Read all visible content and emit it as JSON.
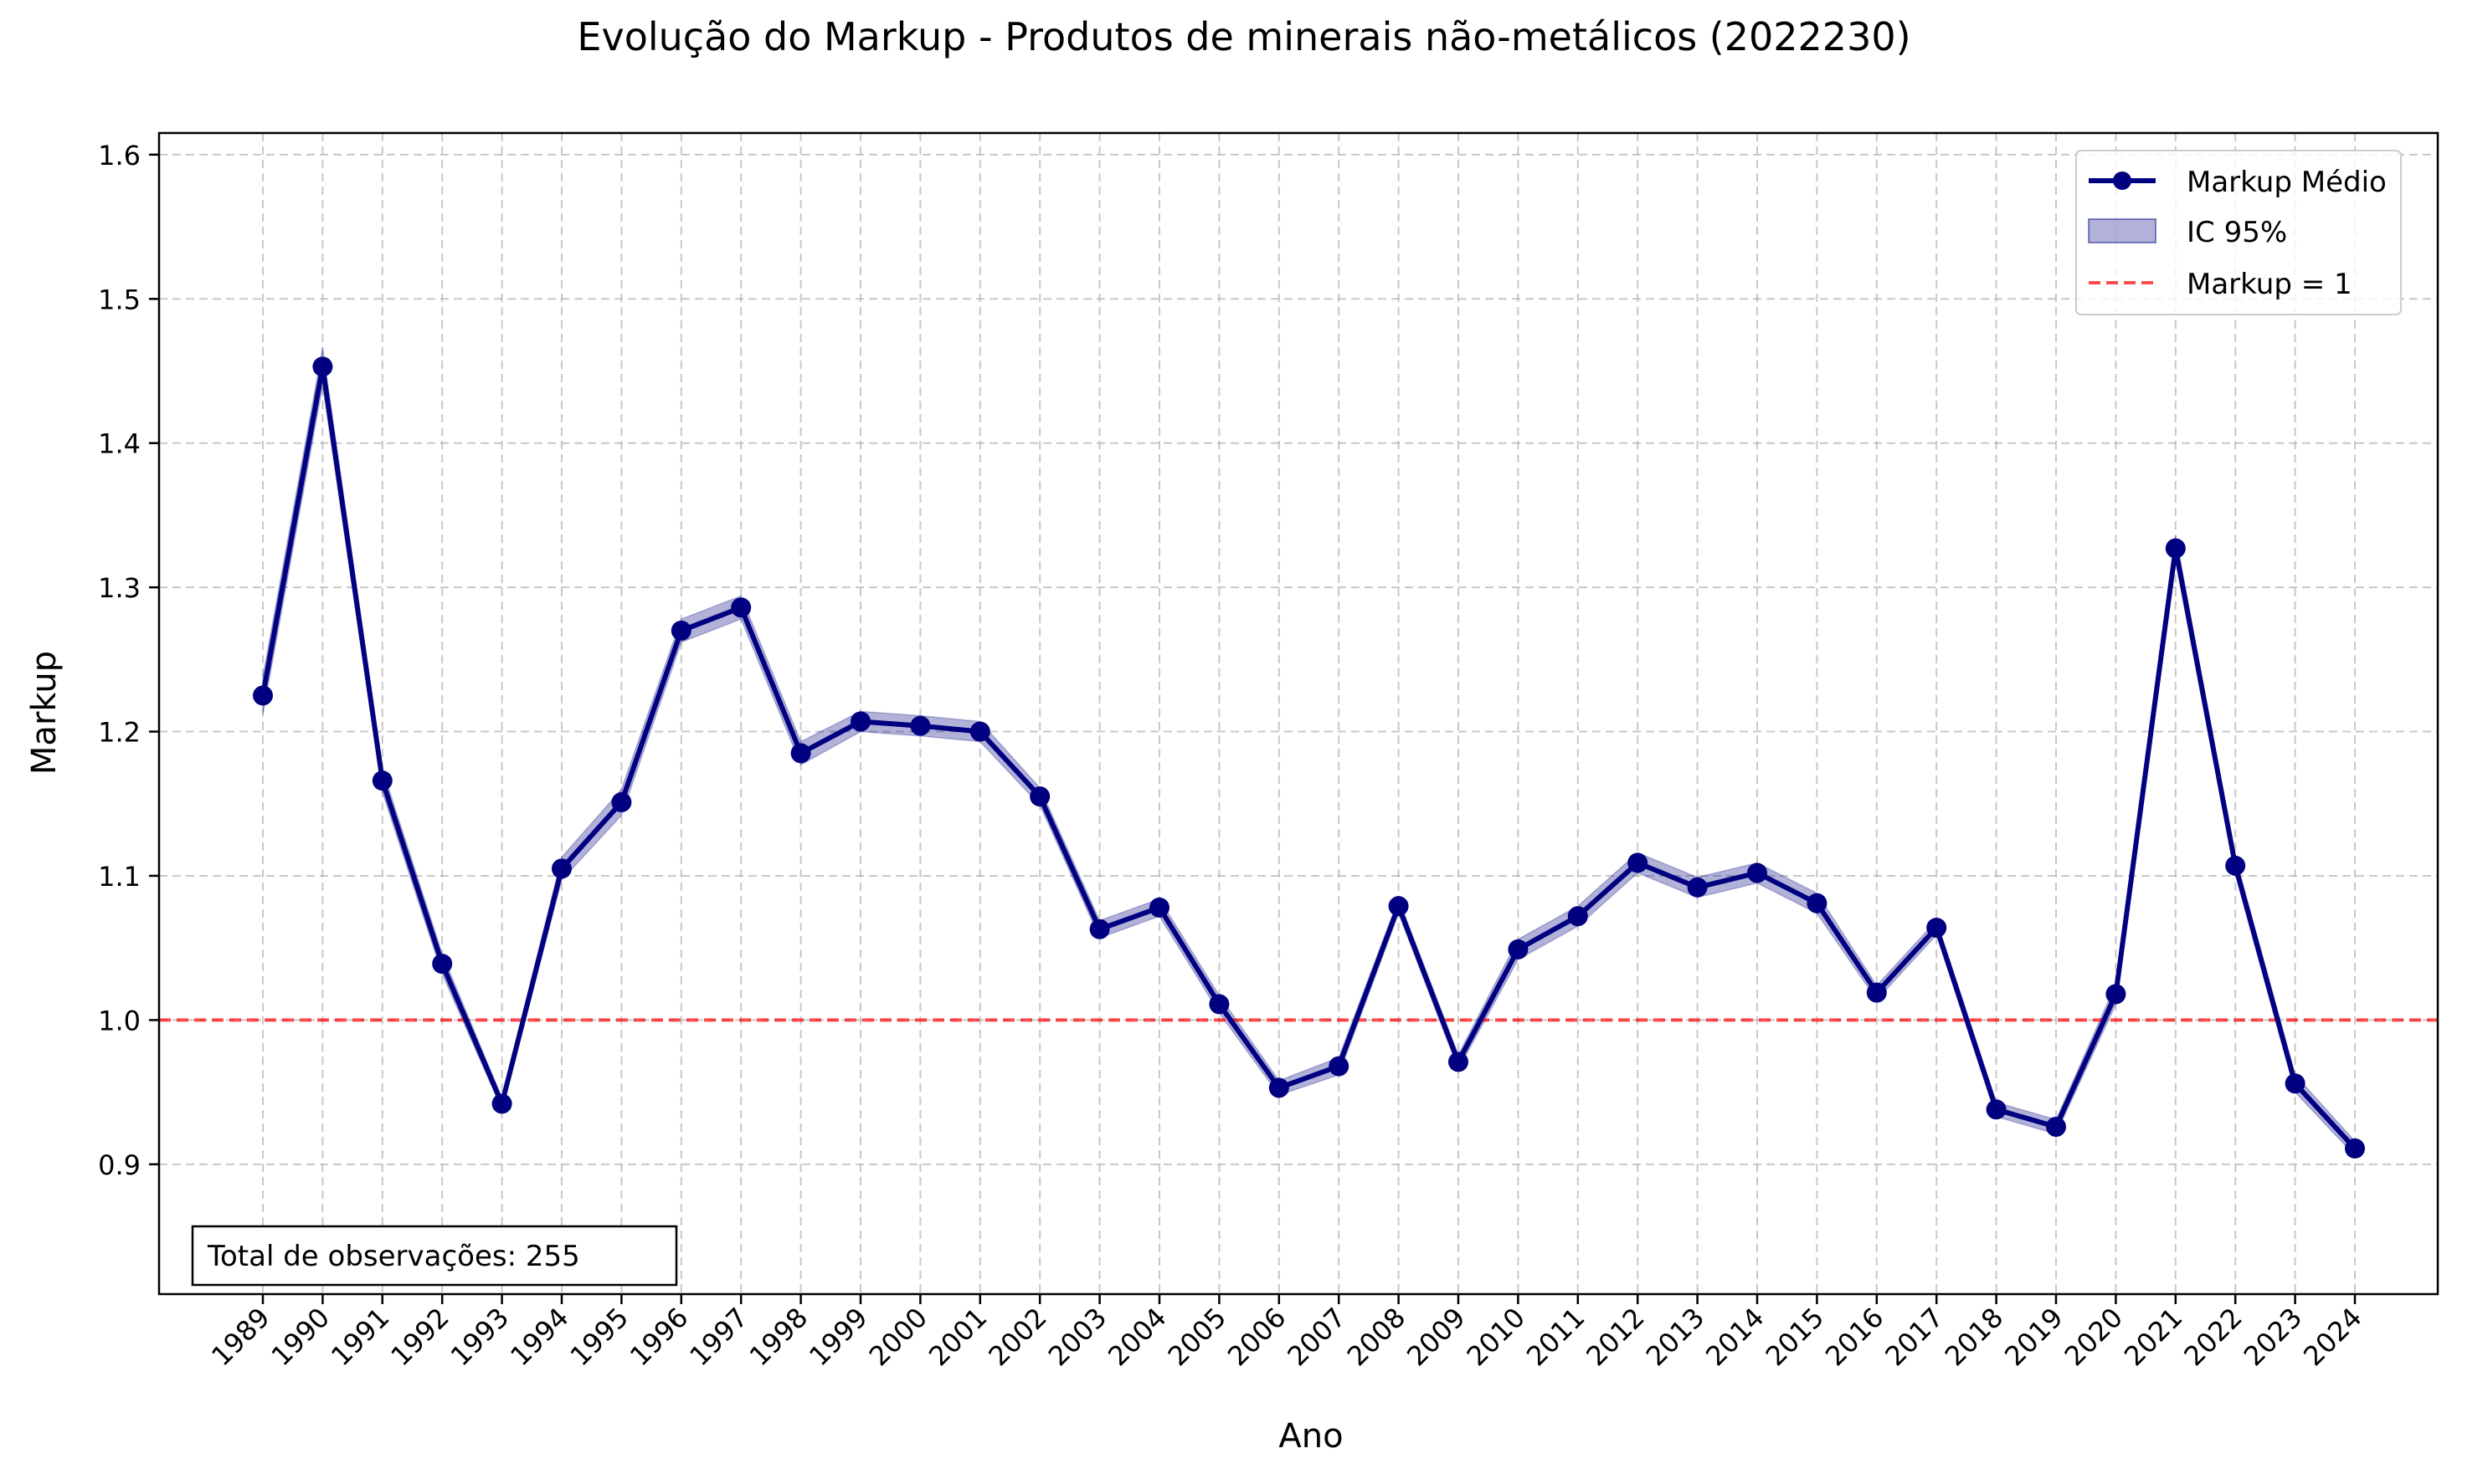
{
  "chart_data": {
    "type": "line",
    "title": "Evolução do Markup - Produtos de minerais não-metálicos (2022230)",
    "xlabel": "Ano",
    "ylabel": "Markup",
    "ylim": [
      0.81,
      1.615
    ],
    "yticks": [
      0.9,
      1.0,
      1.1,
      1.2,
      1.3,
      1.4,
      1.5,
      1.6
    ],
    "ytick_labels": [
      "0.9",
      "1.0",
      "1.1",
      "1.2",
      "1.3",
      "1.4",
      "1.5",
      "1.6"
    ],
    "x": [
      "1989",
      "1990",
      "1991",
      "1992",
      "1993",
      "1994",
      "1995",
      "1996",
      "1997",
      "1998",
      "1999",
      "2000",
      "2001",
      "2002",
      "2003",
      "2004",
      "2005",
      "2006",
      "2007",
      "2008",
      "2009",
      "2010",
      "2011",
      "2012",
      "2013",
      "2014",
      "2015",
      "2016",
      "2017",
      "2018",
      "2019",
      "2020",
      "2021",
      "2022",
      "2023",
      "2024"
    ],
    "series": [
      {
        "name": "Markup Médio",
        "color": "#000080",
        "values": [
          1.225,
          1.453,
          1.166,
          1.039,
          0.942,
          1.105,
          1.151,
          1.27,
          1.286,
          1.185,
          1.207,
          1.204,
          1.2,
          1.155,
          1.063,
          1.078,
          1.011,
          0.953,
          0.968,
          1.079,
          0.971,
          1.049,
          1.072,
          1.109,
          1.092,
          1.102,
          1.081,
          1.019,
          1.064,
          0.938,
          0.926,
          1.018,
          1.327,
          1.107,
          0.956,
          0.911
        ]
      }
    ],
    "confidence_band": {
      "name": "IC 95%",
      "color": "#000080",
      "lower": [
        1.212,
        1.44,
        1.158,
        1.032,
        0.938,
        1.097,
        1.142,
        1.262,
        1.278,
        1.177,
        1.2,
        1.197,
        1.193,
        1.149,
        1.057,
        1.072,
        1.005,
        0.948,
        0.962,
        1.074,
        0.966,
        1.042,
        1.065,
        1.102,
        1.085,
        1.095,
        1.074,
        1.014,
        1.059,
        0.933,
        0.921,
        1.011,
        1.318,
        1.101,
        0.95,
        0.906
      ],
      "upper": [
        1.238,
        1.466,
        1.174,
        1.046,
        0.946,
        1.113,
        1.16,
        1.278,
        1.294,
        1.193,
        1.214,
        1.211,
        1.207,
        1.161,
        1.069,
        1.084,
        1.017,
        0.958,
        0.974,
        1.084,
        0.976,
        1.056,
        1.079,
        1.116,
        1.099,
        1.109,
        1.088,
        1.024,
        1.069,
        0.943,
        0.931,
        1.025,
        1.336,
        1.113,
        0.962,
        0.916
      ]
    },
    "reference_line": {
      "name": "Markup = 1",
      "value": 1.0,
      "color": "#ff0000"
    },
    "legend": {
      "position": "top-right",
      "entries": [
        "Markup Médio",
        "IC 95%",
        "Markup = 1"
      ]
    },
    "annotation": "Total de observações: 255",
    "grid": true
  }
}
